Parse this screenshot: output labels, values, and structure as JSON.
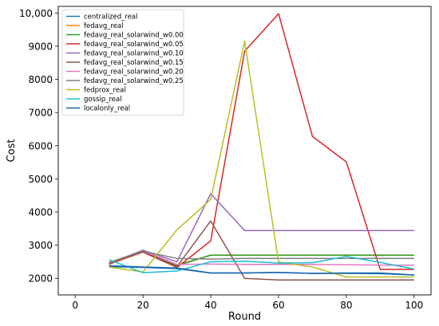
{
  "chart_data": {
    "type": "line",
    "xlabel": "Round",
    "ylabel": "Cost",
    "xlim": [
      -5,
      105
    ],
    "ylim": [
      1500,
      10200
    ],
    "xticks": [
      0,
      20,
      40,
      60,
      80,
      100
    ],
    "yticks": [
      2000,
      3000,
      4000,
      5000,
      6000,
      7000,
      8000,
      9000,
      10000
    ],
    "ytick_labels": [
      "2000",
      "3000",
      "4000",
      "5000",
      "6000",
      "7000",
      "8000",
      "9000",
      "10,000"
    ],
    "grid": false,
    "legend_position": "top-left",
    "x": [
      10,
      20,
      30,
      40,
      50,
      60,
      70,
      80,
      90,
      100
    ],
    "series": [
      {
        "name": "centralized_real",
        "color": "#1f77b4",
        "values": [
          2350,
          2330,
          2290,
          2160,
          2160,
          2180,
          2150,
          2150,
          2140,
          2100
        ]
      },
      {
        "name": "fedavg_real",
        "color": "#ff7f0e",
        "values": [
          2420,
          2800,
          2400,
          2700,
          2700,
          2700,
          2700,
          2700,
          2700,
          2700
        ]
      },
      {
        "name": "fedavg_real_solarwind_w0.00",
        "color": "#2ca02c",
        "values": [
          2430,
          2800,
          2380,
          2700,
          2700,
          2700,
          2700,
          2700,
          2700,
          2700
        ]
      },
      {
        "name": "fedavg_real_solarwind_w0.05",
        "color": "#d62728",
        "values": [
          2440,
          2790,
          2330,
          3130,
          8850,
          9980,
          6280,
          5510,
          2270,
          2270
        ]
      },
      {
        "name": "fedavg_real_solarwind_w0.10",
        "color": "#9467bd",
        "values": [
          2450,
          2850,
          2500,
          4550,
          3440,
          3440,
          3440,
          3440,
          3440,
          3440
        ]
      },
      {
        "name": "fedavg_real_solarwind_w0.15",
        "color": "#8c564b",
        "values": [
          2460,
          2810,
          2350,
          3730,
          2000,
          1950,
          1950,
          1950,
          1950,
          1950
        ]
      },
      {
        "name": "fedavg_real_solarwind_w0.20",
        "color": "#e377c2",
        "values": [
          2470,
          2830,
          2420,
          2430,
          2420,
          2420,
          2420,
          2410,
          2400,
          2400
        ]
      },
      {
        "name": "fedavg_real_solarwind_w0.25",
        "color": "#7f7f7f",
        "values": [
          2480,
          2820,
          2600,
          2580,
          2600,
          2600,
          2600,
          2600,
          2600,
          2600
        ]
      },
      {
        "name": "fedprox_real",
        "color": "#bcbd22",
        "values": [
          2340,
          2190,
          3460,
          4380,
          9150,
          2490,
          2340,
          2040,
          2040,
          2040
        ]
      },
      {
        "name": "gossip_real",
        "color": "#17becf",
        "values": [
          2560,
          2170,
          2220,
          2500,
          2520,
          2460,
          2470,
          2660,
          2480,
          2280
        ]
      },
      {
        "name": "localonly_real",
        "color": "#1765ad",
        "values": [
          2380,
          2340,
          2310,
          2160,
          2160,
          2180,
          2150,
          2160,
          2160,
          2100
        ]
      }
    ]
  }
}
